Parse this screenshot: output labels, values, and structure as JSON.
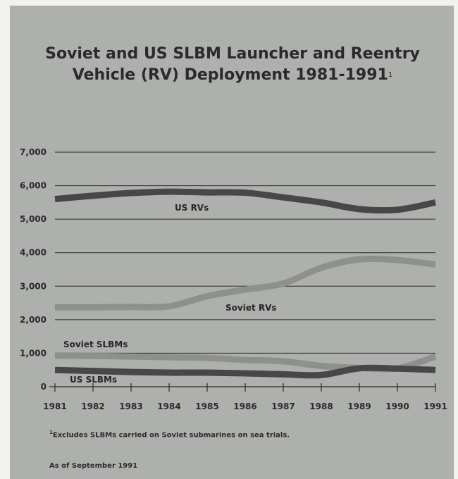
{
  "title_line1": "Soviet and US SLBM Launcher and Reentry",
  "title_line2": "Vehicle (RV) Deployment 1981-1991",
  "title_footnote_mark": "1",
  "footnote_mark": "1",
  "footnote_text": "Excludes SLBMs carried on Soviet submarines on sea trials.",
  "as_of": "As of September 1991",
  "colors": {
    "background": "#aeb0ad",
    "us_line": "#474747",
    "soviet_line": "#8e908d",
    "grid": "#2b2b2b"
  },
  "chart_data": {
    "type": "line",
    "title": "Soviet and US SLBM Launcher and Reentry Vehicle (RV) Deployment 1981-1991",
    "x": [
      "1981",
      "1982",
      "1983",
      "1984",
      "1985",
      "1986",
      "1987",
      "1988",
      "1989",
      "1990",
      "1991"
    ],
    "ylim": [
      0,
      7000
    ],
    "yticks": [
      0,
      1000,
      2000,
      3000,
      4000,
      5000,
      6000,
      7000
    ],
    "ytick_labels": [
      "0",
      "1,000",
      "2,000",
      "3,000",
      "4,000",
      "5,000",
      "6,000",
      "7,000"
    ],
    "grid": true,
    "series": [
      {
        "name": "US RVs",
        "color": "#474747",
        "values": [
          5600,
          5700,
          5780,
          5820,
          5800,
          5790,
          5650,
          5500,
          5300,
          5280,
          5500
        ]
      },
      {
        "name": "Soviet RVs",
        "color": "#8e908d",
        "values": [
          2370,
          2370,
          2380,
          2400,
          2700,
          2900,
          3080,
          3550,
          3800,
          3780,
          3650
        ]
      },
      {
        "name": "Soviet SLBMs",
        "color": "#8e908d",
        "values": [
          930,
          920,
          900,
          880,
          860,
          800,
          760,
          620,
          560,
          550,
          900
        ]
      },
      {
        "name": "US SLBMs",
        "color": "#474747",
        "values": [
          500,
          470,
          440,
          420,
          420,
          400,
          370,
          350,
          550,
          540,
          500
        ]
      }
    ]
  }
}
